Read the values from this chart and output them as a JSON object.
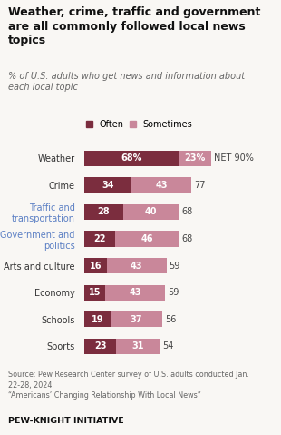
{
  "title": "Weather, crime, traffic and government\nare all commonly followed local news\ntopics",
  "subtitle": "% of U.S. adults who get news and information about\neach local topic",
  "categories": [
    "Weather",
    "Crime",
    "Traffic and\ntransportation",
    "Government and\npolitics",
    "Arts and culture",
    "Economy",
    "Schools",
    "Sports"
  ],
  "often_values": [
    68,
    34,
    28,
    22,
    16,
    15,
    19,
    23
  ],
  "sometimes_values": [
    23,
    43,
    40,
    46,
    43,
    43,
    37,
    31
  ],
  "net_values": [
    "NET 90%",
    "77",
    "68",
    "68",
    "59",
    "59",
    "56",
    "54"
  ],
  "often_labels": [
    "68%",
    "34",
    "28",
    "22",
    "16",
    "15",
    "19",
    "23"
  ],
  "sometimes_labels": [
    "23%",
    "43",
    "40",
    "46",
    "43",
    "43",
    "37",
    "31"
  ],
  "color_often": "#7b2d3e",
  "color_sometimes": "#c9879a",
  "bg_color": "#f9f7f4",
  "net_color": "#444444",
  "source_text": "Source: Pew Research Center survey of U.S. adults conducted Jan.\n22-28, 2024.\n“Americans’ Changing Relationship With Local News”",
  "footer_text": "PEW-KNIGHT INITIATIVE",
  "legend_often": "Often",
  "legend_sometimes": "Sometimes",
  "highlight_categories": [
    "Traffic and\ntransportation",
    "Government and\npolitics"
  ],
  "highlight_color": "#5b7fc4",
  "title_fontsize": 9.0,
  "subtitle_fontsize": 7.0,
  "bar_label_fontsize": 7.0,
  "net_fontsize": 7.0,
  "ytick_fontsize": 7.0,
  "legend_fontsize": 7.0,
  "source_fontsize": 5.8,
  "footer_fontsize": 6.8
}
